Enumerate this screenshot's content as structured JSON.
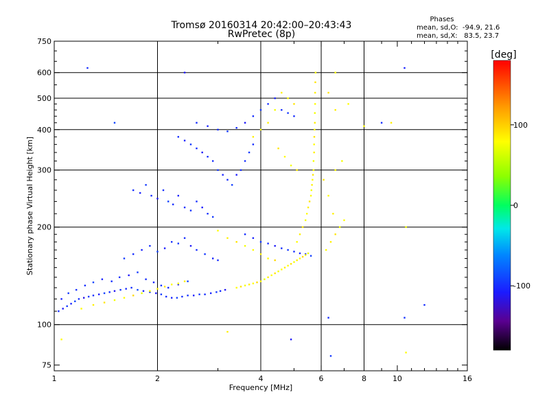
{
  "chart_data": {
    "type": "scatter",
    "title": "Tromsø 20160314 20:42:00–20:43:43",
    "subtitle": "RwPretec (8p)",
    "stats": {
      "heading": "Phases",
      "line_o": "mean, sd,O:  -94.9, 21.6",
      "line_x": "mean, sd,X:   83.5, 23.7"
    },
    "xlabel": "Frequency [MHz]",
    "ylabel": "Stationary phase Virtual Height [km]",
    "x_scale": "log2",
    "y_scale": "log",
    "xlim": [
      1,
      16
    ],
    "ylim": [
      72,
      750
    ],
    "x_ticks": [
      1,
      2,
      4,
      6,
      8,
      10,
      16
    ],
    "y_ticks": [
      75,
      100,
      200,
      300,
      400,
      500,
      600,
      750
    ],
    "x_gridlines": [
      2,
      4,
      6,
      8
    ],
    "y_gridlines": [
      100,
      200,
      300,
      400,
      500,
      600
    ],
    "grid": true,
    "colorbar": {
      "label": "[deg]",
      "range": [
        -180,
        180
      ],
      "ticks": [
        -100,
        0,
        100
      ]
    },
    "series": [
      {
        "name": "O",
        "mean_phase": -94.9,
        "points": [
          [
            1.03,
            110,
            -100
          ],
          [
            1.06,
            112,
            -110
          ],
          [
            1.09,
            114,
            -95
          ],
          [
            1.12,
            116,
            -105
          ],
          [
            1.15,
            118,
            -90
          ],
          [
            1.18,
            120,
            -100
          ],
          [
            1.22,
            121,
            -115
          ],
          [
            1.26,
            122,
            -95
          ],
          [
            1.3,
            123,
            -100
          ],
          [
            1.35,
            124,
            -108
          ],
          [
            1.4,
            125,
            -92
          ],
          [
            1.45,
            126,
            -100
          ],
          [
            1.5,
            127,
            -112
          ],
          [
            1.56,
            128,
            -96
          ],
          [
            1.62,
            129,
            -102
          ],
          [
            1.68,
            130,
            -100
          ],
          [
            1.75,
            128,
            -88
          ],
          [
            1.82,
            127,
            -104
          ],
          [
            1.9,
            126,
            -98
          ],
          [
            1.98,
            125,
            -110
          ],
          [
            2.05,
            124,
            -95
          ],
          [
            2.12,
            122,
            -100
          ],
          [
            2.2,
            121,
            -105
          ],
          [
            2.28,
            121,
            -92
          ],
          [
            2.36,
            122,
            -100
          ],
          [
            2.45,
            123,
            -98
          ],
          [
            2.55,
            123,
            -108
          ],
          [
            2.65,
            124,
            -95
          ],
          [
            2.75,
            124,
            -100
          ],
          [
            2.86,
            125,
            -104
          ],
          [
            2.97,
            126,
            -96
          ],
          [
            3.05,
            127,
            -100
          ],
          [
            3.15,
            128,
            -112
          ],
          [
            1.05,
            120,
            -105
          ],
          [
            1.1,
            125,
            -95
          ],
          [
            1.16,
            128,
            -100
          ],
          [
            1.23,
            132,
            -100
          ],
          [
            1.3,
            135,
            -90
          ],
          [
            1.38,
            138,
            -105
          ],
          [
            1.47,
            136,
            -100
          ],
          [
            1.55,
            140,
            -98
          ],
          [
            1.65,
            142,
            -110
          ],
          [
            1.75,
            145,
            -95
          ],
          [
            1.85,
            138,
            -100
          ],
          [
            1.95,
            135,
            -104
          ],
          [
            2.05,
            132,
            -96
          ],
          [
            2.15,
            130,
            -100
          ],
          [
            2.3,
            133,
            -108
          ],
          [
            2.45,
            136,
            -92
          ],
          [
            1.6,
            160,
            -95
          ],
          [
            1.7,
            165,
            -100
          ],
          [
            1.8,
            170,
            -105
          ],
          [
            1.9,
            175,
            -100
          ],
          [
            2.0,
            168,
            -92
          ],
          [
            2.1,
            172,
            -108
          ],
          [
            2.2,
            180,
            -100
          ],
          [
            2.3,
            178,
            -95
          ],
          [
            2.4,
            185,
            -100
          ],
          [
            2.5,
            175,
            -110
          ],
          [
            2.6,
            170,
            -100
          ],
          [
            2.75,
            165,
            -96
          ],
          [
            2.9,
            160,
            -104
          ],
          [
            3.0,
            158,
            -100
          ],
          [
            1.7,
            260,
            -100
          ],
          [
            1.78,
            255,
            -105
          ],
          [
            1.85,
            270,
            -95
          ],
          [
            1.92,
            250,
            -100
          ],
          [
            2.0,
            245,
            -110
          ],
          [
            2.08,
            260,
            -100
          ],
          [
            2.15,
            240,
            -92
          ],
          [
            2.22,
            235,
            -100
          ],
          [
            2.3,
            250,
            -105
          ],
          [
            2.4,
            230,
            -100
          ],
          [
            2.5,
            225,
            -98
          ],
          [
            2.6,
            240,
            -100
          ],
          [
            2.7,
            230,
            -108
          ],
          [
            2.8,
            220,
            -100
          ],
          [
            2.9,
            215,
            -95
          ],
          [
            2.3,
            380,
            -100
          ],
          [
            2.4,
            370,
            -105
          ],
          [
            2.5,
            360,
            -95
          ],
          [
            2.6,
            350,
            -100
          ],
          [
            2.7,
            340,
            -110
          ],
          [
            2.8,
            330,
            -100
          ],
          [
            2.9,
            320,
            -100
          ],
          [
            3.0,
            300,
            -96
          ],
          [
            3.1,
            290,
            -104
          ],
          [
            3.2,
            280,
            -100
          ],
          [
            3.3,
            270,
            -92
          ],
          [
            3.4,
            290,
            -108
          ],
          [
            3.5,
            300,
            -100
          ],
          [
            3.6,
            320,
            -100
          ],
          [
            3.7,
            340,
            -96
          ],
          [
            3.8,
            360,
            -100
          ],
          [
            2.6,
            420,
            -100
          ],
          [
            2.8,
            410,
            -105
          ],
          [
            3.0,
            400,
            -100
          ],
          [
            3.2,
            395,
            -95
          ],
          [
            3.4,
            405,
            -100
          ],
          [
            3.6,
            420,
            -110
          ],
          [
            3.8,
            440,
            -100
          ],
          [
            4.0,
            460,
            -95
          ],
          [
            4.2,
            480,
            -100
          ],
          [
            4.4,
            500,
            -105
          ],
          [
            4.6,
            460,
            -100
          ],
          [
            4.8,
            450,
            -96
          ],
          [
            5.0,
            440,
            -100
          ],
          [
            3.6,
            190,
            -100
          ],
          [
            3.8,
            185,
            -105
          ],
          [
            4.0,
            180,
            -95
          ],
          [
            4.2,
            178,
            -100
          ],
          [
            4.4,
            175,
            -110
          ],
          [
            4.6,
            172,
            -100
          ],
          [
            4.8,
            170,
            -96
          ],
          [
            5.0,
            168,
            -100
          ],
          [
            5.2,
            166,
            -104
          ],
          [
            5.4,
            165,
            -100
          ],
          [
            5.6,
            163,
            -92
          ],
          [
            1.25,
            620,
            -100
          ],
          [
            1.5,
            420,
            -90
          ],
          [
            2.4,
            600,
            -110
          ],
          [
            6.3,
            105,
            -100
          ],
          [
            6.4,
            80,
            -95
          ],
          [
            4.9,
            90,
            -110
          ],
          [
            9.0,
            420,
            -100
          ],
          [
            10.5,
            620,
            -105
          ],
          [
            10.5,
            105,
            -98
          ],
          [
            12.0,
            115,
            -100
          ]
        ]
      },
      {
        "name": "X",
        "mean_phase": 83.5,
        "points": [
          [
            1.2,
            112,
            80
          ],
          [
            1.3,
            115,
            85
          ],
          [
            1.4,
            117,
            90
          ],
          [
            1.5,
            119,
            75
          ],
          [
            1.6,
            121,
            80
          ],
          [
            1.7,
            123,
            95
          ],
          [
            1.8,
            125,
            70
          ],
          [
            1.9,
            127,
            80
          ],
          [
            2.0,
            129,
            85
          ],
          [
            2.1,
            131,
            90
          ],
          [
            2.2,
            133,
            80
          ],
          [
            2.3,
            134,
            75
          ],
          [
            2.4,
            136,
            85
          ],
          [
            3.4,
            130,
            80
          ],
          [
            3.5,
            131,
            90
          ],
          [
            3.6,
            132,
            75
          ],
          [
            3.7,
            133,
            85
          ],
          [
            3.8,
            134,
            80
          ],
          [
            3.9,
            135,
            95
          ],
          [
            4.0,
            136,
            80
          ],
          [
            4.1,
            138,
            70
          ],
          [
            4.2,
            140,
            85
          ],
          [
            4.3,
            142,
            80
          ],
          [
            4.4,
            144,
            90
          ],
          [
            4.5,
            146,
            75
          ],
          [
            4.6,
            148,
            80
          ],
          [
            4.7,
            150,
            85
          ],
          [
            4.8,
            152,
            80
          ],
          [
            4.9,
            154,
            90
          ],
          [
            5.0,
            156,
            75
          ],
          [
            5.1,
            158,
            85
          ],
          [
            5.2,
            160,
            80
          ],
          [
            5.3,
            162,
            95
          ],
          [
            5.4,
            164,
            80
          ],
          [
            5.5,
            166,
            70
          ],
          [
            5.1,
            180,
            80
          ],
          [
            5.2,
            190,
            85
          ],
          [
            5.3,
            200,
            90
          ],
          [
            5.4,
            210,
            75
          ],
          [
            5.45,
            220,
            80
          ],
          [
            5.5,
            230,
            85
          ],
          [
            5.55,
            240,
            90
          ],
          [
            5.6,
            250,
            80
          ],
          [
            5.62,
            260,
            75
          ],
          [
            5.64,
            270,
            85
          ],
          [
            5.66,
            280,
            80
          ],
          [
            5.68,
            290,
            90
          ],
          [
            5.7,
            300,
            80
          ],
          [
            5.7,
            320,
            75
          ],
          [
            5.72,
            340,
            85
          ],
          [
            5.72,
            360,
            80
          ],
          [
            5.73,
            380,
            90
          ],
          [
            5.74,
            400,
            80
          ],
          [
            5.75,
            420,
            85
          ],
          [
            5.75,
            450,
            75
          ],
          [
            5.76,
            480,
            80
          ],
          [
            5.76,
            520,
            85
          ],
          [
            5.77,
            560,
            90
          ],
          [
            5.78,
            600,
            80
          ],
          [
            4.6,
            520,
            85
          ],
          [
            4.8,
            500,
            80
          ],
          [
            5.0,
            480,
            90
          ],
          [
            4.4,
            460,
            75
          ],
          [
            4.2,
            420,
            85
          ],
          [
            4.0,
            400,
            80
          ],
          [
            3.8,
            380,
            85
          ],
          [
            4.5,
            350,
            90
          ],
          [
            4.7,
            330,
            80
          ],
          [
            4.9,
            310,
            75
          ],
          [
            5.1,
            300,
            85
          ],
          [
            6.2,
            170,
            80
          ],
          [
            6.4,
            180,
            85
          ],
          [
            6.6,
            190,
            90
          ],
          [
            6.8,
            200,
            75
          ],
          [
            7.0,
            210,
            80
          ],
          [
            6.5,
            220,
            85
          ],
          [
            6.3,
            250,
            80
          ],
          [
            6.1,
            280,
            90
          ],
          [
            6.6,
            300,
            80
          ],
          [
            6.9,
            320,
            75
          ],
          [
            6.6,
            460,
            85
          ],
          [
            7.2,
            480,
            80
          ],
          [
            6.3,
            520,
            90
          ],
          [
            6.6,
            600,
            80
          ],
          [
            3.0,
            195,
            80
          ],
          [
            3.2,
            185,
            85
          ],
          [
            3.4,
            180,
            90
          ],
          [
            3.6,
            175,
            75
          ],
          [
            3.8,
            170,
            80
          ],
          [
            4.0,
            165,
            85
          ],
          [
            4.2,
            160,
            80
          ],
          [
            4.4,
            158,
            95
          ],
          [
            1.05,
            90,
            80
          ],
          [
            3.2,
            95,
            85
          ],
          [
            8.0,
            410,
            80
          ],
          [
            9.6,
            420,
            85
          ],
          [
            10.6,
            200,
            75
          ],
          [
            10.6,
            82,
            80
          ]
        ]
      }
    ]
  }
}
